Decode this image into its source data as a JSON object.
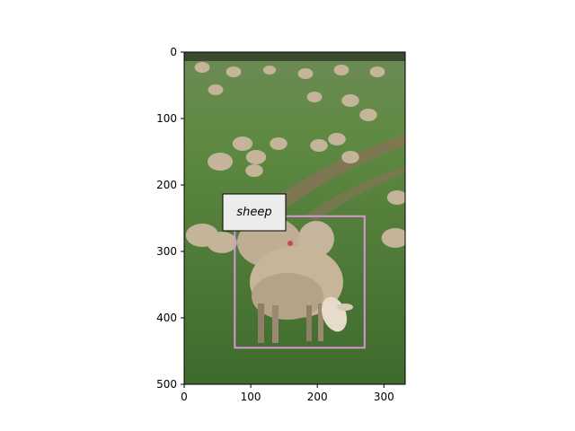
{
  "image": {
    "subject": "flock of sheep grazing on green pasture",
    "width": 332,
    "height": 500
  },
  "annotation": {
    "label": "sheep",
    "box": {
      "x1": 76,
      "y1": 247,
      "x2": 271,
      "y2": 445
    },
    "box_color": "#d896d8"
  },
  "axes": {
    "x_ticks": [
      "0",
      "100",
      "200",
      "300"
    ],
    "y_ticks": [
      "0",
      "100",
      "200",
      "300",
      "400",
      "500"
    ],
    "xlim": [
      0,
      332
    ],
    "ylim": [
      500,
      0
    ]
  },
  "colors": {
    "grass": "#4f7a37",
    "grass_dark": "#3c6228",
    "grass_light": "#7ea05a",
    "wool": "#c7b59a",
    "wool_shadow": "#8f7f68",
    "face": "#e7dccb",
    "path": "#8a7358",
    "tree_line": "#2c3b24"
  }
}
